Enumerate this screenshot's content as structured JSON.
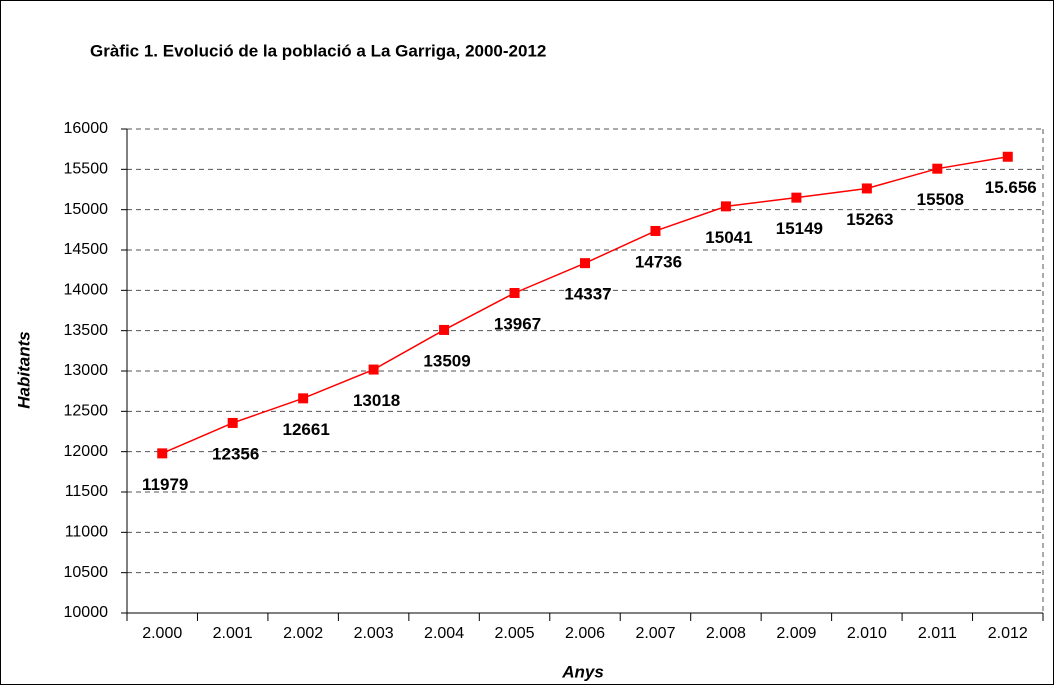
{
  "chart_data": {
    "type": "line",
    "title": "Gràfic 1. Evolució de la població a La Garriga, 2000-2012",
    "x_label": "Anys",
    "y_label": "Habitants",
    "categories": [
      "2.000",
      "2.001",
      "2.002",
      "2.003",
      "2.004",
      "2.005",
      "2.006",
      "2.007",
      "2.008",
      "2.009",
      "2.010",
      "2.011",
      "2.012"
    ],
    "series": [
      {
        "name": "Habitants",
        "color": "#ff0000",
        "values": [
          11979,
          12356,
          12661,
          13018,
          13509,
          13967,
          14337,
          14736,
          15041,
          15149,
          15263,
          15508,
          15656
        ],
        "value_labels": [
          "11979",
          "12356",
          "12661",
          "13018",
          "13509",
          "13967",
          "14337",
          "14736",
          "15041",
          "15149",
          "15263",
          "15508",
          "15.656"
        ]
      }
    ],
    "ylim": [
      10000,
      16000
    ],
    "yticks": [
      10000,
      10500,
      11000,
      11500,
      12000,
      12500,
      13000,
      13500,
      14000,
      14500,
      15000,
      15500,
      16000
    ],
    "grid": true
  }
}
